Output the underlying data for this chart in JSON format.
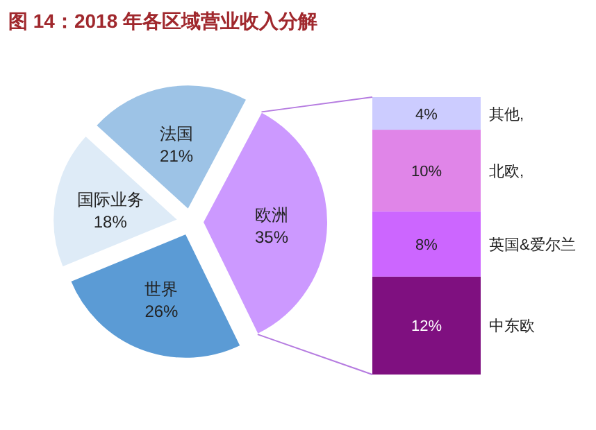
{
  "chart_data": [
    {
      "type": "pie",
      "title": "图 14：2018 年各区域营业收入分解",
      "categories": [
        "欧洲",
        "世界",
        "国际业务",
        "法国"
      ],
      "values": [
        35,
        26,
        18,
        21
      ],
      "colors": [
        "#cc99ff",
        "#5b9bd5",
        "#deebf7",
        "#9dc3e6"
      ],
      "value_labels": [
        "35%",
        "26%",
        "18%",
        "21%"
      ]
    },
    {
      "type": "bar",
      "stacked": true,
      "categories": [
        null
      ],
      "series": [
        {
          "name": "中东欧",
          "color": "#7f1080",
          "values": [
            12
          ],
          "value_labels": [
            "12%"
          ]
        },
        {
          "name": "英国&爱尔兰",
          "color": "#cc66ff",
          "values": [
            8
          ],
          "value_labels": [
            "8%"
          ]
        },
        {
          "name": "北欧,",
          "color": "#e085e8",
          "values": [
            10
          ],
          "value_labels": [
            "10%"
          ]
        },
        {
          "name": "其他,",
          "color": "#ccccff",
          "values": [
            4
          ],
          "value_labels": [
            "4%"
          ]
        }
      ]
    }
  ]
}
